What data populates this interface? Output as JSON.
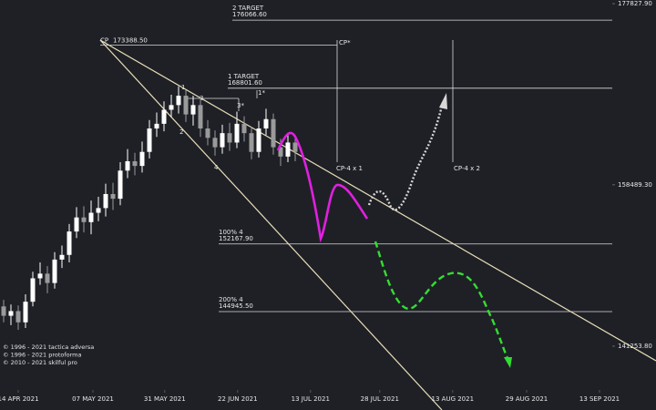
{
  "chart_data": {
    "type": "candlestick",
    "xlim": [
      -0.5,
      89.5
    ],
    "xticks": [
      {
        "value": 2,
        "label": "14 APR 2021"
      },
      {
        "value": 12.25,
        "label": "07 MAY 2021"
      },
      {
        "value": 22.1,
        "label": "31 MAY 2021"
      },
      {
        "value": 32.1,
        "label": "22 JUN 2021"
      },
      {
        "value": 42.1,
        "label": "13 JUL 2021"
      },
      {
        "value": 51.6,
        "label": "28 JUL 2021"
      },
      {
        "value": 61.6,
        "label": "13 AUG 2021"
      },
      {
        "value": 71.75,
        "label": "29 AUG 2021"
      },
      {
        "value": 81.75,
        "label": "13 SEP 2021"
      }
    ],
    "ylim": [
      138330,
      178220
    ],
    "yticks": [
      {
        "value": 177827.9,
        "label": "177827.90"
      },
      {
        "value": 158489.3,
        "label": "158489.30"
      },
      {
        "value": 141253.8,
        "label": "141253.80"
      }
    ],
    "up_color": "#ffffff",
    "down_color": "#9a9a9a",
    "series": [
      {
        "open": [
          145500,
          144500,
          145000,
          143800,
          146000,
          148500,
          149000,
          148000,
          150500,
          151000,
          153500,
          155000,
          154500,
          155500,
          156000,
          157500,
          157000,
          160000,
          161000,
          160500,
          162000,
          164500,
          165000,
          166500,
          167000,
          168000,
          166000,
          167000,
          164500,
          163500,
          162500,
          164000,
          163000,
          165000,
          164000,
          162000,
          164500,
          165500,
          162500,
          161500,
          163000
        ],
        "high": [
          146200,
          145700,
          145600,
          146800,
          149200,
          150200,
          149800,
          151300,
          152000,
          154300,
          156100,
          156200,
          156800,
          157200,
          158600,
          158700,
          160900,
          162300,
          161900,
          163100,
          165400,
          166200,
          167400,
          168100,
          169000,
          168600,
          168000,
          167500,
          165400,
          164300,
          164900,
          165100,
          166300,
          165800,
          164700,
          165300,
          166600,
          166100,
          163400,
          163900,
          163800
        ],
        "low": [
          143800,
          143500,
          143000,
          143200,
          145500,
          147800,
          146900,
          147400,
          149600,
          150200,
          152800,
          153400,
          153200,
          154600,
          155100,
          155800,
          156300,
          159200,
          159500,
          159800,
          161300,
          163600,
          164200,
          165700,
          166100,
          165200,
          164800,
          163600,
          162700,
          161600,
          161800,
          162100,
          162400,
          163100,
          161200,
          161400,
          163800,
          161700,
          160500,
          160900,
          161000
        ],
        "close": [
          144500,
          145000,
          143800,
          146000,
          148500,
          149000,
          148000,
          150500,
          151000,
          153500,
          155000,
          154500,
          155500,
          156000,
          157500,
          157000,
          160000,
          161000,
          160500,
          162000,
          164500,
          165000,
          166500,
          167000,
          168000,
          166000,
          167000,
          164500,
          163500,
          162500,
          164000,
          163000,
          165000,
          164000,
          162000,
          164500,
          165500,
          162500,
          161500,
          163000,
          162000
        ]
      }
    ],
    "levels": [
      {
        "name": "2 TARGET",
        "value": 176066.6,
        "label": "176066.60"
      },
      {
        "name": "CP",
        "value": 173388.5,
        "label": "173388.50"
      },
      {
        "name": "1 TARGET",
        "value": 168801.6,
        "label": "168801.60"
      },
      {
        "name": "100%  4",
        "value": 152167.9,
        "label": "152167.90"
      },
      {
        "name": "200%  4",
        "value": 144945.5,
        "label": "144945.50"
      }
    ],
    "annotations": [
      "1",
      "2",
      "3",
      "3*",
      "1*",
      "4",
      "CP*",
      "CP-4 x 1",
      "CP-4 x 2"
    ],
    "credits": [
      "© 1996 - 2021 tactica adversa",
      "© 1996 - 2021 protoforma",
      "© 2010 - 2021 skilful pro"
    ]
  }
}
